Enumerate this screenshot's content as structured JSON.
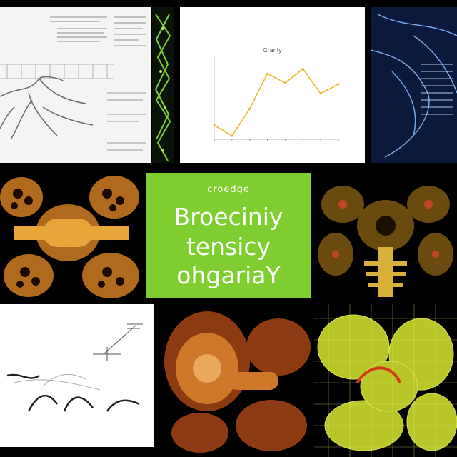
{
  "title_tile": {
    "tagline": "croedge",
    "line1": "Broeciniy",
    "line2": "tensicy",
    "line3": "ohgariaY",
    "bg_color": "#7fce2f"
  },
  "chart_tile": {
    "title": "Graniy",
    "xlabel": "",
    "line_color": "#e8b830"
  },
  "chart_data": {
    "type": "line",
    "title": "Graniy",
    "xlabel": "",
    "ylabel": "",
    "x": [
      1,
      2,
      3,
      4,
      5,
      6,
      7,
      8
    ],
    "values": [
      1.2,
      0.3,
      2.6,
      5.6,
      4.8,
      6.0,
      3.9,
      4.7
    ],
    "ylim": [
      0,
      7
    ],
    "grid": false
  },
  "tiles": [
    {
      "name": "document-tile",
      "icon": "schematic-document"
    },
    {
      "name": "micrograph-strip-tile",
      "icon": "green-cell-strip"
    },
    {
      "name": "xray-tile",
      "icon": "blue-xray-anatomy"
    },
    {
      "name": "cell-tile-orange",
      "icon": "orange-cell-structure"
    },
    {
      "name": "cell-tile-yellow",
      "icon": "yellow-cell-structure"
    },
    {
      "name": "sketch-tile",
      "icon": "ink-sketch"
    },
    {
      "name": "cell-tile-red",
      "icon": "red-cell-organism"
    },
    {
      "name": "mesh-tile",
      "icon": "yellow-wireframe-mesh"
    }
  ]
}
